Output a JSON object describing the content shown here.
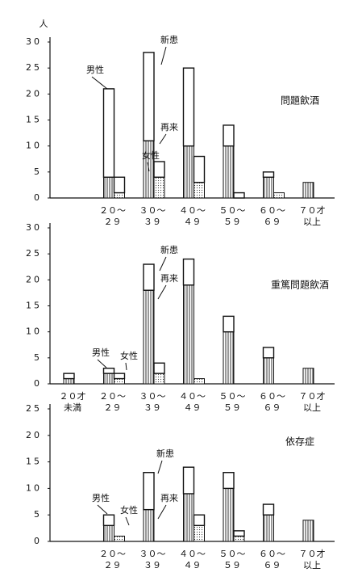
{
  "chart_data": [
    {
      "type": "bar",
      "title": "問題飲酒",
      "unit": "人",
      "categories": [
        [
          "２０～",
          "２９"
        ],
        [
          "３０～",
          "３９"
        ],
        [
          "４０～",
          "４９"
        ],
        [
          "５０～",
          "５９"
        ],
        [
          "６０～",
          "６９"
        ],
        [
          "７０才",
          "以上"
        ]
      ],
      "series": [
        {
          "name": "男性",
          "return": [
            4,
            11,
            10,
            10,
            4,
            3
          ],
          "new": [
            17,
            17,
            15,
            4,
            1,
            0
          ]
        },
        {
          "name": "女性",
          "return": [
            1,
            4,
            3,
            0,
            1,
            null
          ],
          "new": [
            3,
            3,
            5,
            1,
            0,
            null
          ]
        }
      ],
      "labels": {
        "new": "新患",
        "return": "再来"
      },
      "ylim": [
        0,
        30
      ],
      "yticks": [
        0,
        5,
        10,
        15,
        20,
        25,
        30
      ]
    },
    {
      "type": "bar",
      "title": "重篤問題飲酒",
      "categories": [
        [
          "２０才",
          "未満"
        ],
        [
          "２０～",
          "２９"
        ],
        [
          "３０～",
          "３９"
        ],
        [
          "４０～",
          "４９"
        ],
        [
          "５０～",
          "５９"
        ],
        [
          "６０～",
          "６９"
        ],
        [
          "７０才",
          "以上"
        ]
      ],
      "series": [
        {
          "name": "男性",
          "return": [
            1,
            2,
            18,
            19,
            10,
            5,
            3
          ],
          "new": [
            1,
            1,
            5,
            5,
            3,
            2,
            0
          ]
        },
        {
          "name": "女性",
          "return": [
            null,
            1,
            2,
            1,
            null,
            null,
            null
          ],
          "new": [
            null,
            1,
            2,
            0,
            null,
            null,
            null
          ]
        }
      ],
      "labels": {
        "new": "新患",
        "return": "再来"
      },
      "ylim": [
        0,
        30
      ],
      "yticks": [
        0,
        5,
        10,
        15,
        20,
        25,
        30
      ]
    },
    {
      "type": "bar",
      "title": "依存症",
      "categories": [
        [
          "２０～",
          "２９"
        ],
        [
          "３０～",
          "３９"
        ],
        [
          "４０～",
          "４９"
        ],
        [
          "５０～",
          "５９"
        ],
        [
          "６０～",
          "６９"
        ],
        [
          "７０才",
          "以上"
        ]
      ],
      "series": [
        {
          "name": "男性",
          "return": [
            3,
            6,
            9,
            10,
            5,
            4
          ],
          "new": [
            2,
            7,
            5,
            3,
            2,
            0
          ]
        },
        {
          "name": "女性",
          "return": [
            1,
            null,
            3,
            1,
            null,
            null
          ],
          "new": [
            0,
            null,
            2,
            1,
            null,
            null
          ]
        }
      ],
      "labels": {
        "new": "新患",
        "return": "再来"
      },
      "ylim": [
        0,
        25
      ],
      "yticks": [
        0,
        5,
        10,
        15,
        20,
        25
      ]
    }
  ]
}
